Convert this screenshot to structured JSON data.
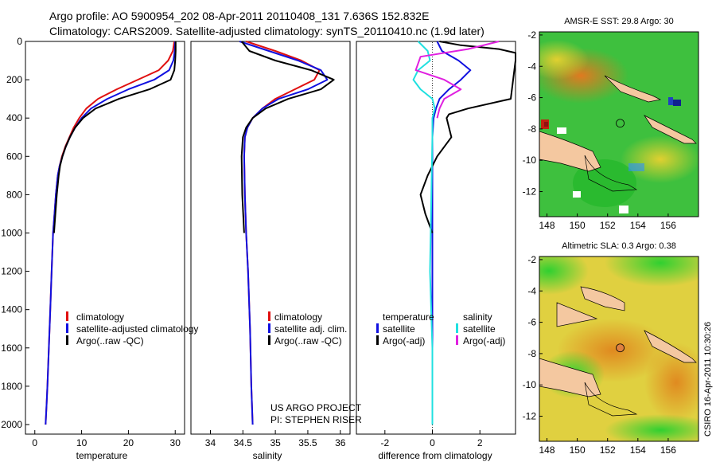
{
  "header": {
    "line1": "Argo profile: AO 5900954_202 08-Apr-2011 20110408_131 7.636S 152.832E",
    "line2": "Climatology: CARS2009. Satellite-adjusted climatology: synTS_20110410.nc (1.9d later)"
  },
  "colors": {
    "climatology": "#e01010",
    "satellite": "#1010e0",
    "argo": "#000000",
    "satellite_diff": "#20e0e0",
    "argo_sal_diff": "#e020e0",
    "land": "#f4c8a0"
  },
  "credits": {
    "project": "US ARGO PROJECT",
    "pi": "PI: STEPHEN RISER",
    "stamp": "CSIRO 16-Apr-2011 10:30:26"
  },
  "chart_data": [
    {
      "id": "temperature",
      "type": "line",
      "xlabel": "temperature",
      "xlim": [
        -2,
        32
      ],
      "ylim": [
        2050,
        0
      ],
      "xticks": [
        "0",
        "10",
        "20",
        "30"
      ],
      "yticks": [
        "0",
        "200",
        "400",
        "600",
        "800",
        "1000",
        "1200",
        "1400",
        "1600",
        "1800",
        "2000"
      ],
      "legend": [
        "climatology",
        "satellite-adjusted climatology",
        "Argo(..raw -QC)"
      ],
      "series": [
        {
          "name": "climatology",
          "x": [
            29.8,
            29.5,
            28.5,
            26.5,
            22,
            17.5,
            13.5,
            11,
            9.5,
            8.3,
            7.4,
            6.5,
            5.8,
            5.3,
            4.9,
            4.5,
            4.2,
            3.9,
            3.6,
            3.3,
            3.0,
            2.7,
            2.5,
            2.3
          ],
          "y": [
            0,
            50,
            100,
            150,
            200,
            250,
            300,
            350,
            400,
            450,
            500,
            550,
            600,
            650,
            700,
            800,
            900,
            1000,
            1200,
            1400,
            1600,
            1800,
            1900,
            2000
          ]
        },
        {
          "name": "satellite-adjusted climatology",
          "x": [
            30.0,
            29.9,
            29.6,
            28.7,
            25.5,
            20,
            15.5,
            12,
            10,
            8.6,
            7.5,
            6.6,
            5.9,
            5.3,
            4.9,
            4.5,
            4.2,
            3.9,
            3.6,
            3.3,
            3.0,
            2.7,
            2.5,
            2.3
          ],
          "y": [
            0,
            50,
            100,
            150,
            200,
            250,
            300,
            350,
            400,
            450,
            500,
            550,
            600,
            650,
            700,
            800,
            900,
            1000,
            1200,
            1400,
            1600,
            1800,
            1900,
            2000
          ]
        },
        {
          "name": "Argo(..raw -QC)",
          "x": [
            30.1,
            30.1,
            30.0,
            29.8,
            29.0,
            24.5,
            18,
            13,
            10.3,
            8.6,
            7.5,
            6.6,
            5.9,
            5.4,
            5.1,
            4.7,
            4.4,
            4.1
          ],
          "y": [
            0,
            50,
            100,
            150,
            200,
            250,
            300,
            350,
            400,
            450,
            500,
            550,
            600,
            650,
            700,
            800,
            900,
            1000
          ]
        }
      ]
    },
    {
      "id": "salinity",
      "type": "line",
      "xlabel": "salinity",
      "xlim": [
        33.7,
        36.15
      ],
      "ylim": [
        2050,
        0
      ],
      "xticks": [
        "34",
        "34.5",
        "35",
        "35.5",
        "36"
      ],
      "legend": [
        "climatology",
        "satellite adj. clim.",
        "Argo(..raw -QC)"
      ],
      "series": [
        {
          "name": "climatology",
          "x": [
            34.55,
            35.0,
            35.4,
            35.68,
            35.6,
            35.3,
            35.0,
            34.8,
            34.65,
            34.57,
            34.53,
            34.52,
            34.53,
            34.55,
            34.58,
            34.61,
            34.63,
            34.65
          ],
          "y": [
            0,
            50,
            100,
            150,
            200,
            250,
            300,
            350,
            400,
            450,
            500,
            600,
            800,
            1000,
            1200,
            1500,
            1800,
            2000
          ]
        },
        {
          "name": "satellite adj. clim.",
          "x": [
            34.45,
            34.9,
            35.35,
            35.7,
            35.8,
            35.5,
            35.05,
            34.8,
            34.65,
            34.57,
            34.53,
            34.52,
            34.53,
            34.55,
            34.58,
            34.61,
            34.63,
            34.65
          ],
          "y": [
            0,
            50,
            100,
            150,
            200,
            250,
            300,
            350,
            400,
            450,
            500,
            600,
            800,
            1000,
            1200,
            1500,
            1800,
            2000
          ]
        },
        {
          "name": "Argo(..raw -QC)",
          "x": [
            34.48,
            34.6,
            35.0,
            35.55,
            35.9,
            35.7,
            35.2,
            34.85,
            34.65,
            34.55,
            34.5,
            34.48,
            34.49,
            34.52
          ],
          "y": [
            0,
            50,
            100,
            150,
            200,
            250,
            300,
            350,
            400,
            450,
            500,
            600,
            800,
            1000
          ]
        }
      ]
    },
    {
      "id": "difference",
      "type": "line",
      "xlabel": "difference from climatology",
      "xlim": [
        -3.2,
        3.5
      ],
      "ylim": [
        2050,
        0
      ],
      "xticks": [
        "-2",
        "0",
        "2"
      ],
      "legend": [
        {
          "group": "temperature",
          "items": [
            "satellite",
            "Argo(-adj)"
          ]
        },
        {
          "group": "salinity",
          "items": [
            "satellite",
            "Argo(-adj)"
          ]
        }
      ],
      "series": [
        {
          "name": "temperature satellite",
          "x": [
            0.2,
            0.4,
            1.1,
            1.6,
            1.2,
            0.7,
            0.3,
            0.15,
            0.05,
            0.0,
            0.0,
            0.0,
            0.0
          ],
          "y": [
            0,
            50,
            100,
            150,
            200,
            250,
            300,
            350,
            400,
            500,
            800,
            1200,
            2000
          ]
        },
        {
          "name": "temperature Argo(-adj)",
          "x": [
            0.3,
            1.2,
            2.8,
            3.5,
            3.5,
            3.3,
            1.5,
            0.7,
            0.6,
            0.7,
            0.8,
            0.5,
            0.2,
            -0.2,
            -0.5,
            -0.3,
            0.0
          ],
          "y": [
            0,
            20,
            40,
            60,
            100,
            300,
            350,
            380,
            400,
            450,
            500,
            550,
            600,
            700,
            800,
            900,
            1000
          ]
        },
        {
          "name": "salinity satellite",
          "x": [
            -0.6,
            -0.2,
            -0.1,
            -0.6,
            -0.8,
            -0.5,
            0.0,
            0.1,
            0.0,
            0.0,
            -0.1,
            0.0,
            0.0
          ],
          "y": [
            0,
            50,
            100,
            150,
            200,
            250,
            300,
            350,
            400,
            500,
            1200,
            1600,
            2000
          ]
        },
        {
          "name": "salinity Argo(-adj)",
          "x": [
            2.8,
            1.5,
            -0.5,
            -0.7,
            0.5,
            1.2,
            0.5,
            0.3,
            0.2
          ],
          "y": [
            0,
            40,
            80,
            150,
            200,
            250,
            300,
            350,
            400
          ]
        }
      ]
    },
    {
      "id": "sst_map",
      "type": "heatmap",
      "title": "AMSR-E SST: 29.8 Argo: 30",
      "xticks": [
        "148",
        "150",
        "152",
        "154",
        "156"
      ],
      "yticks": [
        "-2",
        "-4",
        "-6",
        "-8",
        "-10",
        "-12"
      ],
      "xlim": [
        147.5,
        158
      ],
      "ylim": [
        -1.8,
        -13.6
      ],
      "argo_position": {
        "lon": 152.832,
        "lat": -7.636
      }
    },
    {
      "id": "sla_map",
      "type": "heatmap",
      "title": "Altimetric SLA: 0.3 Argo: 0.38",
      "xticks": [
        "148",
        "150",
        "152",
        "154",
        "156"
      ],
      "yticks": [
        "-2",
        "-4",
        "-6",
        "-8",
        "-10",
        "-12"
      ],
      "xlim": [
        147.5,
        158
      ],
      "ylim": [
        -1.8,
        -13.6
      ],
      "argo_position": {
        "lon": 152.832,
        "lat": -7.636
      }
    }
  ]
}
